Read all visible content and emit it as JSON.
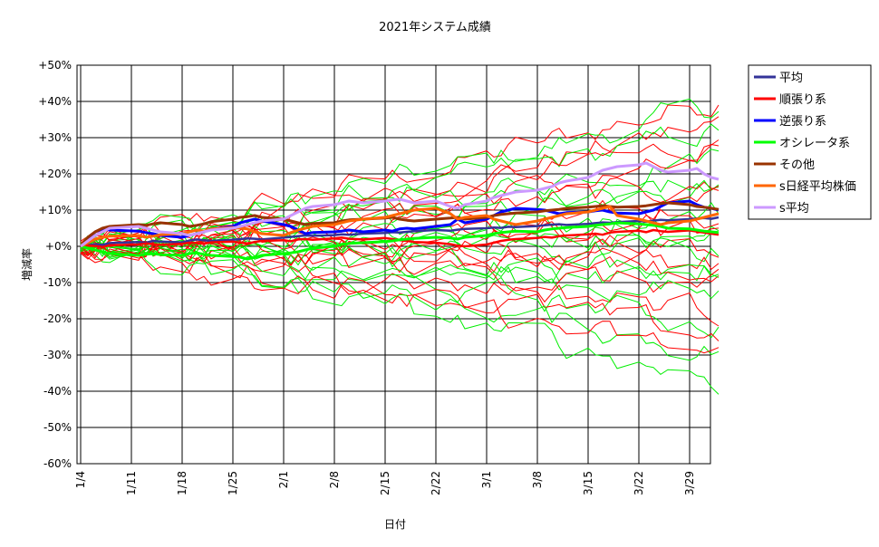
{
  "chart_data": {
    "type": "line",
    "title": "2021年システム成績",
    "xlabel": "日付",
    "ylabel": "増減率",
    "ylim": [
      -60,
      50
    ],
    "yticks": [
      50,
      40,
      30,
      20,
      10,
      0,
      -10,
      -20,
      -30,
      -40,
      -50,
      -60
    ],
    "ytick_labels": [
      "+50%",
      "+40%",
      "+30%",
      "+20%",
      "+10%",
      "+0%",
      "-10%",
      "-20%",
      "-30%",
      "-40%",
      "-50%",
      "-60%"
    ],
    "x_ticks": [
      "1/4",
      "1/11",
      "1/18",
      "1/25",
      "2/1",
      "2/8",
      "2/15",
      "2/22",
      "3/1",
      "3/8",
      "3/15",
      "3/22",
      "3/29"
    ],
    "grid": true,
    "legend_position": "right",
    "x": [
      "1/4",
      "1/5",
      "1/6",
      "1/7",
      "1/8",
      "1/12",
      "1/13",
      "1/14",
      "1/15",
      "1/18",
      "1/19",
      "1/20",
      "1/21",
      "1/22",
      "1/25",
      "1/26",
      "1/27",
      "1/28",
      "1/29",
      "2/1",
      "2/2",
      "2/3",
      "2/4",
      "2/5",
      "2/8",
      "2/9",
      "2/10",
      "2/12",
      "2/15",
      "2/16",
      "2/17",
      "2/18",
      "2/19",
      "2/22",
      "2/24",
      "2/25",
      "2/26",
      "3/1",
      "3/2",
      "3/3",
      "3/4",
      "3/5",
      "3/8",
      "3/9",
      "3/10",
      "3/11",
      "3/12",
      "3/15",
      "3/16",
      "3/17",
      "3/18",
      "3/19",
      "3/22",
      "3/23",
      "3/24",
      "3/25",
      "3/26",
      "3/29",
      "3/30",
      "3/31",
      "4/1",
      "4/2"
    ],
    "series": [
      {
        "name": "平均",
        "color": "#333399",
        "width": 2.5,
        "values": [
          0,
          0.3,
          0.6,
          0.4,
          0.9,
          1.2,
          1.0,
          1.5,
          1.3,
          1.1,
          1.6,
          1.9,
          1.7,
          1.5,
          1.8,
          2.0,
          2.2,
          2.1,
          1.9,
          2.4,
          2.6,
          2.8,
          3.0,
          2.9,
          3.1,
          3.3,
          3.2,
          3.5,
          3.7,
          3.9,
          3.8,
          4.0,
          4.2,
          4.5,
          4.3,
          4.6,
          4.8,
          5.0,
          5.2,
          5.1,
          5.4,
          5.3,
          5.6,
          5.8,
          6.0,
          6.1,
          5.9,
          6.2,
          6.4,
          6.6,
          6.5,
          6.7,
          7.0,
          6.8,
          7.1,
          7.3,
          7.2,
          7.5,
          7.7,
          7.8,
          7.6,
          8.0
        ]
      },
      {
        "name": "順張り系",
        "color": "#ff0000",
        "width": 2.5,
        "values": [
          0,
          0.2,
          0.1,
          -0.2,
          0.3,
          0.5,
          0.8,
          0.6,
          0.4,
          0.7,
          1.0,
          0.9,
          0.7,
          1.1,
          1.3,
          1.0,
          0.8,
          1.2,
          1.5,
          1.7,
          1.4,
          1.9,
          2.0,
          1.8,
          2.2,
          2.4,
          2.1,
          1.9,
          2.3,
          2.0,
          1.7,
          1.5,
          1.2,
          1.0,
          0.6,
          0.2,
          0.0,
          0.5,
          1.0,
          1.5,
          1.8,
          2.0,
          2.3,
          2.6,
          2.4,
          2.8,
          3.0,
          3.3,
          3.5,
          3.2,
          3.8,
          4.0,
          4.3,
          3.9,
          4.5,
          4.2,
          4.0,
          4.4,
          4.1,
          3.8,
          3.5,
          3.2
        ]
      },
      {
        "name": "逆張り系",
        "color": "#0000ff",
        "width": 3,
        "values": [
          0,
          2.0,
          4.0,
          4.8,
          4.5,
          4.2,
          3.8,
          3.5,
          3.0,
          2.5,
          3.0,
          3.5,
          4.0,
          4.8,
          5.5,
          6.5,
          7.0,
          7.5,
          7.0,
          6.0,
          5.5,
          4.5,
          3.5,
          3.8,
          4.0,
          4.2,
          4.5,
          4.0,
          4.5,
          4.2,
          4.8,
          5.0,
          4.8,
          5.5,
          6.0,
          7.5,
          6.5,
          7.5,
          8.5,
          9.5,
          10.0,
          10.5,
          10.2,
          10.0,
          9.5,
          9.0,
          9.3,
          9.5,
          9.8,
          10.0,
          9.5,
          9.2,
          9.0,
          9.5,
          10.0,
          11.0,
          12.0,
          12.5,
          11.5,
          10.8,
          10.5,
          10.0
        ]
      },
      {
        "name": "オシレータ系",
        "color": "#00ff00",
        "width": 3,
        "values": [
          0,
          -0.5,
          -1.0,
          -1.5,
          -2.0,
          -2.5,
          -2.2,
          -2.0,
          -2.3,
          -2.5,
          -2.0,
          -1.8,
          -2.2,
          -2.5,
          -2.8,
          -3.0,
          -3.5,
          -3.0,
          -2.5,
          -2.0,
          -1.8,
          -1.5,
          -1.0,
          -0.5,
          0,
          0.5,
          0.8,
          1.0,
          1.3,
          1.5,
          1.8,
          2.0,
          2.2,
          2.5,
          2.3,
          2.0,
          2.5,
          3.0,
          3.5,
          3.8,
          4.0,
          4.2,
          4.0,
          4.5,
          4.8,
          5.0,
          5.2,
          5.5,
          5.8,
          6.0,
          6.2,
          6.5,
          6.2,
          6.0,
          5.8,
          5.5,
          5.0,
          4.8,
          4.5,
          4.2,
          4.0,
          3.8
        ]
      },
      {
        "name": "その他",
        "color": "#993300",
        "width": 3,
        "values": [
          0,
          2.5,
          4.0,
          5.0,
          5.5,
          6.0,
          5.8,
          6.2,
          6.5,
          6.0,
          5.5,
          5.8,
          6.2,
          6.8,
          7.5,
          8.0,
          8.2,
          8.5,
          8.0,
          7.5,
          7.0,
          6.5,
          6.0,
          6.3,
          6.5,
          7.0,
          7.3,
          7.5,
          7.8,
          8.0,
          7.5,
          7.2,
          7.0,
          7.5,
          7.8,
          8.0,
          7.5,
          8.0,
          8.5,
          8.8,
          9.0,
          9.2,
          9.5,
          9.8,
          10.0,
          10.2,
          10.5,
          10.8,
          11.0,
          11.2,
          11.0,
          10.8,
          11.0,
          11.2,
          11.5,
          11.8,
          12.0,
          11.5,
          11.0,
          10.8,
          10.5,
          10.2
        ]
      },
      {
        "name": "s日経平均株価",
        "color": "#ff6600",
        "width": 3,
        "values": [
          0,
          1.0,
          2.0,
          2.5,
          2.8,
          3.0,
          2.5,
          2.8,
          3.2,
          3.5,
          4.0,
          4.5,
          4.2,
          4.8,
          5.2,
          5.0,
          4.8,
          4.0,
          3.5,
          3.0,
          3.8,
          4.5,
          5.0,
          5.5,
          6.0,
          6.5,
          7.0,
          7.5,
          8.0,
          8.5,
          9.0,
          9.5,
          10.0,
          10.5,
          9.0,
          7.5,
          8.0,
          8.5,
          7.5,
          7.0,
          6.5,
          6.0,
          7.0,
          7.5,
          8.0,
          8.5,
          9.0,
          9.5,
          10.0,
          10.5,
          11.0,
          8.5,
          7.5,
          7.0,
          6.5,
          6.0,
          6.5,
          7.0,
          7.5,
          8.0,
          8.5,
          9.0
        ]
      },
      {
        "name": "s平均",
        "color": "#cc99ff",
        "width": 3,
        "values": [
          0,
          1.5,
          3.0,
          4.0,
          5.0,
          5.5,
          5.0,
          4.5,
          4.0,
          3.5,
          3.0,
          3.5,
          4.0,
          4.5,
          5.0,
          5.5,
          6.0,
          6.5,
          7.0,
          7.5,
          8.5,
          9.5,
          10.5,
          11.0,
          11.5,
          12.0,
          12.5,
          12.0,
          12.5,
          12.8,
          13.0,
          12.5,
          12.0,
          12.5,
          11.0,
          10.5,
          11.5,
          12.5,
          13.5,
          14.0,
          14.5,
          15.0,
          15.5,
          16.0,
          16.5,
          17.5,
          18.0,
          19.0,
          20.0,
          21.0,
          21.5,
          22.0,
          22.5,
          23.0,
          22.0,
          21.0,
          20.5,
          21.0,
          21.5,
          20.0,
          19.0,
          18.5
        ]
      }
    ]
  }
}
